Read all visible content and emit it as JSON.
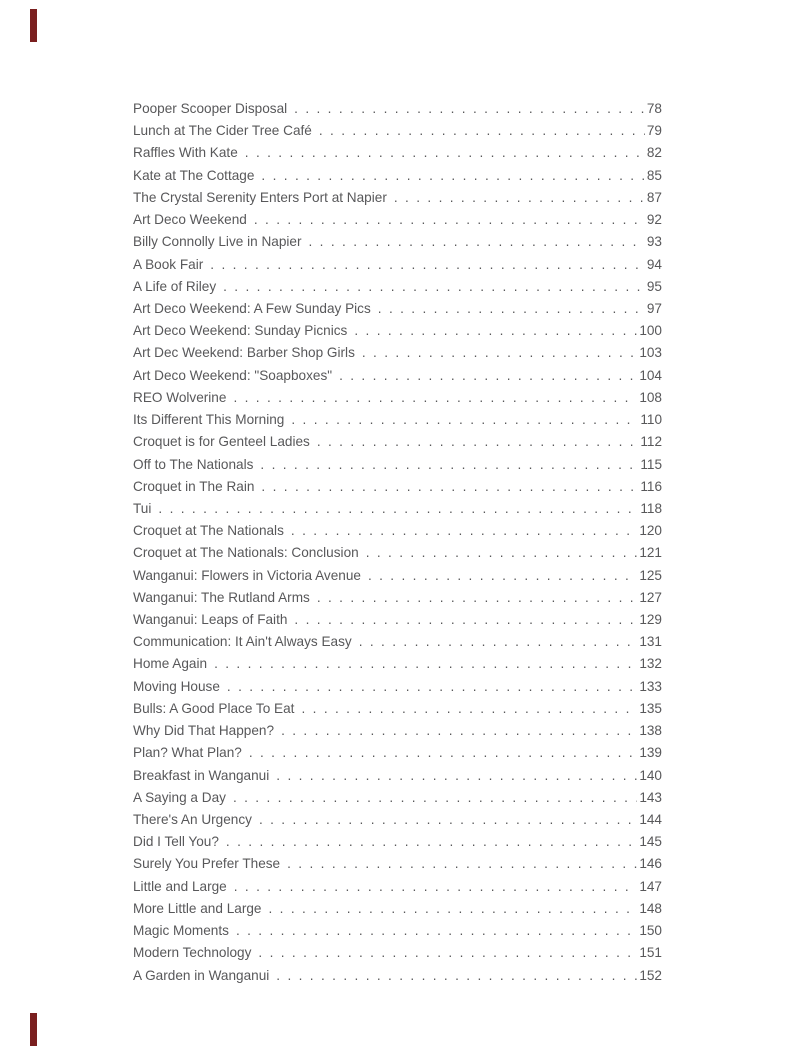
{
  "page": {
    "background_color": "#ffffff",
    "text_color": "#58585a",
    "crop_mark_color": "#7a1f1f"
  },
  "toc": {
    "entries": [
      {
        "title": "Pooper Scooper Disposal",
        "page": "78"
      },
      {
        "title": "Lunch at The Cider Tree Café",
        "page": "79"
      },
      {
        "title": "Raffles With Kate",
        "page": "82"
      },
      {
        "title": "Kate at The Cottage",
        "page": "85"
      },
      {
        "title": "The Crystal Serenity Enters Port at Napier",
        "page": "87"
      },
      {
        "title": "Art Deco Weekend",
        "page": "92"
      },
      {
        "title": "Billy Connolly Live in Napier",
        "page": "93"
      },
      {
        "title": "A Book Fair",
        "page": "94"
      },
      {
        "title": "A Life of Riley",
        "page": "95"
      },
      {
        "title": "Art Deco Weekend: A Few Sunday Pics",
        "page": "97"
      },
      {
        "title": "Art Deco Weekend: Sunday Picnics",
        "page": "100"
      },
      {
        "title": "Art Dec Weekend: Barber Shop Girls",
        "page": "103"
      },
      {
        "title": "Art Deco Weekend: \"Soapboxes\"",
        "page": "104"
      },
      {
        "title": "REO Wolverine",
        "page": "108"
      },
      {
        "title": "Its Different This Morning",
        "page": "110"
      },
      {
        "title": "Croquet is for Genteel Ladies",
        "page": "112"
      },
      {
        "title": "Off to The Nationals",
        "page": "115"
      },
      {
        "title": "Croquet in The Rain",
        "page": "116"
      },
      {
        "title": "Tui",
        "page": "118"
      },
      {
        "title": "Croquet at The Nationals",
        "page": "120"
      },
      {
        "title": "Croquet at The Nationals: Conclusion",
        "page": "121"
      },
      {
        "title": "Wanganui: Flowers in Victoria Avenue",
        "page": "125"
      },
      {
        "title": "Wanganui: The Rutland Arms",
        "page": "127"
      },
      {
        "title": "Wanganui: Leaps of Faith",
        "page": "129"
      },
      {
        "title": "Communication: It Ain't Always Easy",
        "page": "131"
      },
      {
        "title": "Home Again",
        "page": "132"
      },
      {
        "title": "Moving House",
        "page": "133"
      },
      {
        "title": "Bulls: A Good Place To Eat",
        "page": "135"
      },
      {
        "title": "Why Did That Happen?",
        "page": "138"
      },
      {
        "title": "Plan? What Plan?",
        "page": "139"
      },
      {
        "title": "Breakfast in Wanganui",
        "page": "140"
      },
      {
        "title": "A Saying a Day",
        "page": "143"
      },
      {
        "title": "There's An Urgency",
        "page": "144"
      },
      {
        "title": "Did I Tell You?",
        "page": "145"
      },
      {
        "title": "Surely You Prefer These",
        "page": "146"
      },
      {
        "title": "Little and Large",
        "page": "147"
      },
      {
        "title": "More Little and Large",
        "page": "148"
      },
      {
        "title": "Magic Moments",
        "page": "150"
      },
      {
        "title": "Modern Technology",
        "page": "151"
      },
      {
        "title": "A Garden in Wanganui",
        "page": "152"
      }
    ]
  }
}
